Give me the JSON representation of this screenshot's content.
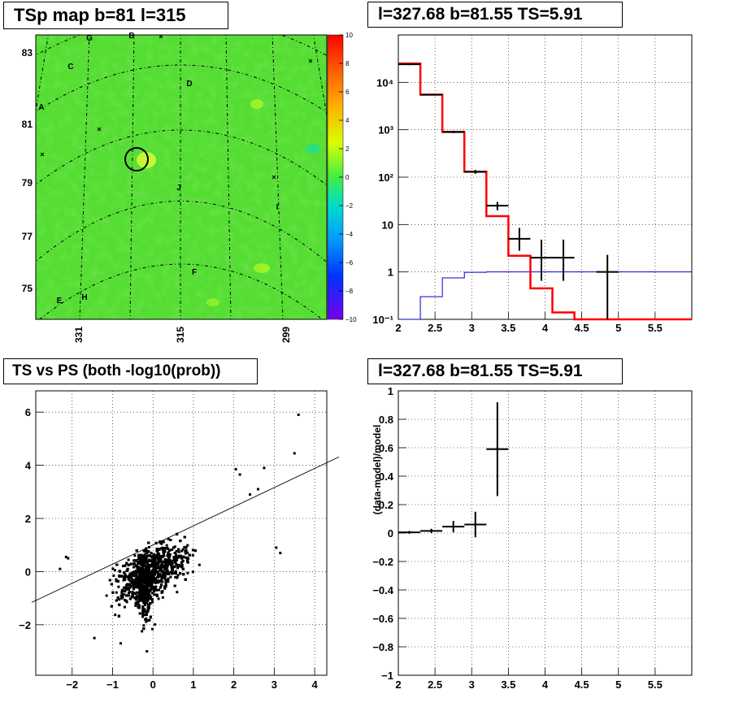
{
  "panels": {
    "map_title": "TSp map b=81 l=315",
    "spectrum_title": "l=327.68 b=81.55 TS=5.91",
    "scatter_title": "TS vs PS (both -log10(prob))",
    "residual_title": "l=327.68 b=81.55 TS=5.91"
  },
  "colors": {
    "map_green": "#55dd33",
    "data": "#000000",
    "model": "#ff0000",
    "background_model": "#0000cc",
    "frame": "#000000",
    "grid": "#000000"
  },
  "chart_data": [
    {
      "type": "heatmap",
      "name": "TSp map",
      "title": "TSp map b=81 l=315",
      "yticks": [
        "83",
        "81",
        "79",
        "77",
        "75"
      ],
      "xticks": [
        "331",
        "315",
        "299"
      ],
      "colorbar": {
        "min": -10,
        "max": 10,
        "ticks": [
          "10",
          "8",
          "6",
          "4",
          "2",
          "0",
          "−2",
          "−4",
          "−6",
          "−8",
          "−10"
        ]
      },
      "source_labels": [
        "G",
        "B",
        "C",
        "D",
        "A",
        "J",
        "I",
        "F",
        "H",
        "E"
      ],
      "marked_source": {
        "l": 327.68,
        "b": 81.55
      }
    },
    {
      "type": "line",
      "title": "l=327.68 b=81.55 TS=5.91",
      "xlim": [
        2,
        6
      ],
      "ylim_log": [
        0.1,
        100000
      ],
      "yscale": "log",
      "xticks": [
        "2",
        "2.5",
        "3",
        "3.5",
        "4",
        "4.5",
        "5",
        "5.5"
      ],
      "yticks": [
        "10⁻¹",
        "1",
        "10",
        "10²",
        "10³",
        "10⁴"
      ],
      "model_step": {
        "edges": [
          2.0,
          2.3,
          2.6,
          2.9,
          3.2,
          3.5,
          3.8,
          4.1,
          4.4,
          6.0
        ],
        "values": [
          25000,
          5500,
          900,
          130,
          15,
          2.2,
          0.45,
          0.14,
          0.1
        ]
      },
      "background_step": {
        "edges": [
          2.0,
          2.3,
          2.6,
          2.9,
          3.2,
          6.0
        ],
        "values": [
          0.1,
          0.3,
          0.75,
          0.98,
          1.0
        ]
      },
      "points": [
        {
          "x": 2.15,
          "xerr": 0.15,
          "y": 24000,
          "ylo": 23000,
          "yhi": 25000
        },
        {
          "x": 2.45,
          "xerr": 0.15,
          "y": 5500,
          "ylo": 5300,
          "yhi": 5700
        },
        {
          "x": 2.75,
          "xerr": 0.15,
          "y": 900,
          "ylo": 850,
          "yhi": 950
        },
        {
          "x": 3.05,
          "xerr": 0.15,
          "y": 130,
          "ylo": 118,
          "yhi": 142
        },
        {
          "x": 3.35,
          "xerr": 0.15,
          "y": 25,
          "ylo": 20,
          "yhi": 30
        },
        {
          "x": 3.65,
          "xerr": 0.15,
          "y": 5,
          "ylo": 2.8,
          "yhi": 8.5
        },
        {
          "x": 3.95,
          "xerr": 0.15,
          "y": 2,
          "ylo": 0.65,
          "yhi": 4.8
        },
        {
          "x": 4.25,
          "xerr": 0.15,
          "y": 2,
          "ylo": 0.65,
          "yhi": 4.8
        },
        {
          "x": 4.85,
          "xerr": 0.15,
          "y": 1,
          "ylo": 0.1,
          "yhi": 2.3
        }
      ]
    },
    {
      "type": "scatter",
      "title": "TS vs PS (both -log10(prob))",
      "xlim": [
        -2.9,
        4.3
      ],
      "ylim": [
        -3.9,
        6.8
      ],
      "xticks": [
        "−2",
        "−1",
        "0",
        "1",
        "2",
        "3",
        "4"
      ],
      "yticks": [
        "−2",
        "0",
        "2",
        "4",
        "6"
      ],
      "reference_line": {
        "slope": 0.72,
        "intercept": 1.0
      },
      "outliers": [
        {
          "x": 3.6,
          "y": 5.9
        },
        {
          "x": 3.5,
          "y": 4.45
        },
        {
          "x": 2.75,
          "y": 3.9
        },
        {
          "x": 2.05,
          "y": 3.85
        },
        {
          "x": 2.15,
          "y": 3.65
        },
        {
          "x": 2.6,
          "y": 3.1
        },
        {
          "x": 3.05,
          "y": 0.9
        },
        {
          "x": 3.15,
          "y": 0.7
        },
        {
          "x": -2.15,
          "y": 0.55
        },
        {
          "x": -2.3,
          "y": 0.1
        },
        {
          "x": -2.1,
          "y": 0.5
        },
        {
          "x": -1.45,
          "y": -2.5
        },
        {
          "x": -0.8,
          "y": -2.7
        },
        {
          "x": -0.15,
          "y": -3.0
        },
        {
          "x": 2.4,
          "y": 2.9
        }
      ]
    },
    {
      "type": "line",
      "title": "l=327.68 b=81.55 TS=5.91",
      "ylabel": "(data-model)/model",
      "xlim": [
        2,
        6
      ],
      "ylim": [
        -1,
        1
      ],
      "xticks": [
        "2",
        "2.5",
        "3",
        "3.5",
        "4",
        "4.5",
        "5",
        "5.5"
      ],
      "yticks": [
        "1",
        "0.8",
        "0.6",
        "0.4",
        "0.2",
        "0",
        "−0.2",
        "−0.4",
        "−0.6",
        "−0.8",
        "−1"
      ],
      "points": [
        {
          "x": 2.15,
          "xerr": 0.15,
          "y": 0.005,
          "yerr": 0.01
        },
        {
          "x": 2.45,
          "xerr": 0.15,
          "y": 0.015,
          "yerr": 0.015
        },
        {
          "x": 2.75,
          "xerr": 0.15,
          "y": 0.045,
          "yerr": 0.04
        },
        {
          "x": 3.05,
          "xerr": 0.15,
          "y": 0.06,
          "yerr": 0.09
        },
        {
          "x": 3.35,
          "xerr": 0.15,
          "y": 0.59,
          "yerr": 0.33
        }
      ]
    }
  ]
}
